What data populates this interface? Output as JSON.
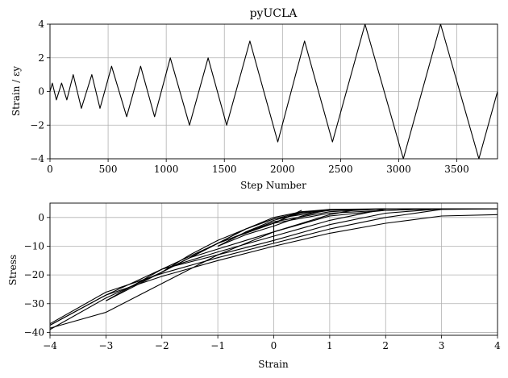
{
  "chart_data": [
    {
      "type": "line",
      "title": "pyUCLA",
      "xlabel": "Step Number",
      "ylabel": "Strain / εy",
      "xlim": [
        0,
        3850
      ],
      "ylim": [
        -4,
        4
      ],
      "xticks": [
        0,
        500,
        1000,
        1500,
        2000,
        2500,
        3000,
        3500
      ],
      "yticks": [
        -4,
        -2,
        0,
        2,
        4
      ],
      "grid": true,
      "series": [
        {
          "x": [
            0,
            20,
            55,
            100,
            145,
            200,
            270,
            360,
            430,
            530,
            660,
            780,
            900,
            1035,
            1200,
            1360,
            1520,
            1720,
            1960,
            2190,
            2430,
            2710,
            3040,
            3360,
            3690,
            3850
          ],
          "values": [
            0,
            0.5,
            -0.5,
            0.5,
            -0.5,
            1,
            -1,
            1,
            -1,
            1.5,
            -1.5,
            1.5,
            -1.5,
            2,
            -2,
            2,
            -2,
            3,
            -3,
            3,
            -3,
            4,
            -4,
            4,
            -4,
            0
          ]
        }
      ]
    },
    {
      "type": "line",
      "title": "",
      "xlabel": "Strain",
      "ylabel": "Stress",
      "xlim": [
        -4,
        4
      ],
      "ylim": [
        -41,
        5
      ],
      "xticks": [
        -4,
        -3,
        -2,
        -1,
        0,
        1,
        2,
        3,
        4
      ],
      "yticks": [
        -40,
        -30,
        -20,
        -10,
        0
      ],
      "grid": true,
      "series": [
        {
          "x": [
            -4,
            -3,
            -2,
            -1,
            -0.5,
            0,
            0.5,
            1,
            2,
            3,
            4
          ],
          "values": [
            -39,
            -28,
            -19,
            -9,
            -4,
            0,
            2,
            2.8,
            3,
            3,
            3
          ]
        },
        {
          "x": [
            4,
            3,
            2,
            1,
            0,
            -1,
            -2,
            -3,
            -4
          ],
          "values": [
            1,
            0.5,
            -2,
            -5.5,
            -10,
            -15,
            -20.5,
            -27,
            -37.5
          ]
        },
        {
          "x": [
            -4,
            -3,
            -2,
            -1,
            0,
            1,
            2,
            3,
            4
          ],
          "values": [
            -37.5,
            -27,
            -18,
            -9,
            -2,
            1.5,
            2.5,
            3,
            3
          ]
        },
        {
          "x": [
            4,
            3,
            2,
            1,
            0,
            -1,
            -2,
            -3,
            -4
          ],
          "values": [
            3,
            2.8,
            0,
            -4,
            -9,
            -14,
            -19.5,
            -26,
            -37
          ]
        },
        {
          "x": [
            -4,
            -3,
            -2,
            -1,
            0,
            1,
            2,
            3
          ],
          "values": [
            -38.5,
            -33,
            -23,
            -13,
            -5,
            0.5,
            2.5,
            3
          ]
        },
        {
          "x": [
            3,
            2,
            1,
            0,
            -1,
            -2,
            -3
          ],
          "values": [
            3,
            1.5,
            -2.5,
            -8,
            -13,
            -18,
            -29
          ]
        },
        {
          "x": [
            -3,
            -2,
            -1,
            0,
            1,
            2
          ],
          "values": [
            -29,
            -19,
            -9,
            -1.5,
            2,
            3
          ]
        },
        {
          "x": [
            2,
            1,
            0,
            -1,
            -2
          ],
          "values": [
            3,
            -1,
            -6.5,
            -12,
            -18
          ]
        },
        {
          "x": [
            -2,
            -1.5,
            -1,
            -0.5,
            0,
            1,
            2
          ],
          "values": [
            -19,
            -13,
            -8,
            -4,
            -0.5,
            2.5,
            3
          ]
        },
        {
          "x": [
            1.5,
            1,
            0.5,
            0,
            -0.5,
            -1,
            -1.5
          ],
          "values": [
            2.8,
            1,
            -2,
            -5,
            -8,
            -11,
            -14
          ]
        },
        {
          "x": [
            -1.5,
            -1,
            -0.5,
            0,
            0.5,
            1,
            1.5
          ],
          "values": [
            -14,
            -9,
            -4,
            -0.5,
            1.8,
            2.6,
            2.9
          ]
        },
        {
          "x": [
            1,
            0.5,
            0,
            -0.5,
            -1
          ],
          "values": [
            2.8,
            0.5,
            -3,
            -6,
            -10
          ]
        },
        {
          "x": [
            -1,
            -0.5,
            0,
            0.5,
            1
          ],
          "values": [
            -10,
            -5,
            -1,
            1.5,
            2.5
          ]
        },
        {
          "x": [
            0.5,
            0,
            -0.5
          ],
          "values": [
            2.5,
            -2,
            -5
          ]
        },
        {
          "x": [
            0,
            0,
            0.3,
            0.5
          ],
          "values": [
            -9,
            -2,
            0.5,
            2
          ]
        }
      ]
    }
  ]
}
